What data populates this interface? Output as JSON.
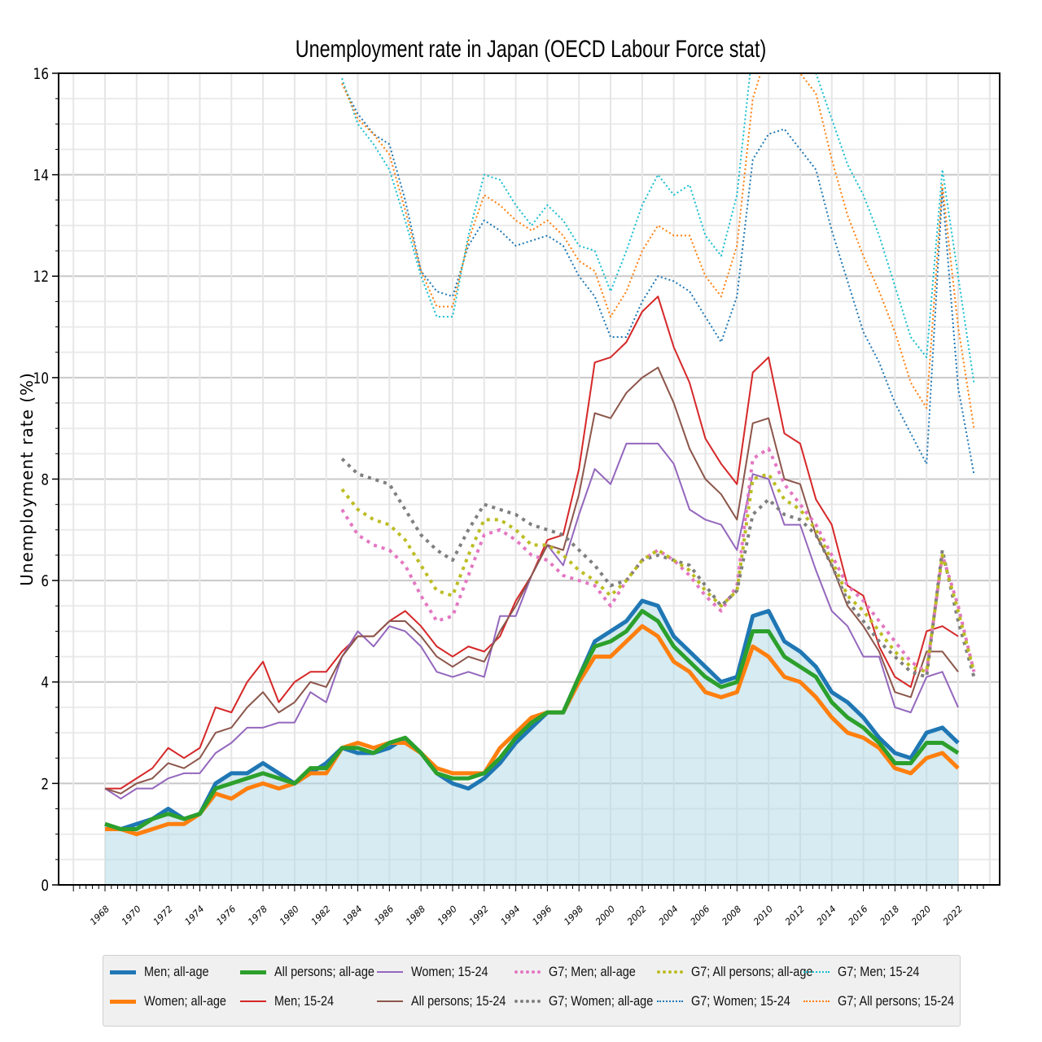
{
  "chart_data": {
    "type": "line",
    "title": "Unemployment rate in Japan (OECD Labour Force stat)",
    "xlabel": "",
    "ylabel": "Unemployment rate (%)",
    "ylim": [
      0,
      16
    ],
    "xlim": [
      1966,
      2024
    ],
    "yticks": [
      "0",
      "2",
      "4",
      "6",
      "8",
      "10",
      "12",
      "14",
      "16"
    ],
    "xticks": [
      "1968",
      "1970",
      "1972",
      "1974",
      "1976",
      "1978",
      "1980",
      "1982",
      "1984",
      "1986",
      "1988",
      "1990",
      "1992",
      "1994",
      "1996",
      "1998",
      "2000",
      "2002",
      "2004",
      "2006",
      "2008",
      "2010",
      "2012",
      "2014",
      "2016",
      "2018",
      "2020",
      "2022"
    ],
    "grid": true,
    "legend_position": "bottom",
    "area_fill": {
      "series": "Men; all-age",
      "color": "#add8e6"
    },
    "series": [
      {
        "name": "Men; all-age",
        "color": "#1f77b4",
        "style": "solid",
        "width": "thick",
        "start": 1968,
        "values": [
          1.2,
          1.1,
          1.2,
          1.3,
          1.5,
          1.3,
          1.4,
          2.0,
          2.2,
          2.2,
          2.4,
          2.2,
          2.0,
          2.2,
          2.4,
          2.7,
          2.6,
          2.6,
          2.7,
          2.9,
          2.6,
          2.2,
          2.0,
          1.9,
          2.1,
          2.4,
          2.8,
          3.1,
          3.4,
          3.4,
          4.1,
          4.8,
          5.0,
          5.2,
          5.6,
          5.5,
          4.9,
          4.6,
          4.3,
          4.0,
          4.1,
          5.3,
          5.4,
          4.8,
          4.6,
          4.3,
          3.8,
          3.6,
          3.3,
          2.9,
          2.6,
          2.5,
          3.0,
          3.1,
          2.8
        ]
      },
      {
        "name": "Women; all-age",
        "color": "#ff7f0e",
        "style": "solid",
        "width": "thick",
        "start": 1968,
        "values": [
          1.1,
          1.1,
          1.0,
          1.1,
          1.2,
          1.2,
          1.4,
          1.8,
          1.7,
          1.9,
          2.0,
          1.9,
          2.0,
          2.2,
          2.2,
          2.7,
          2.8,
          2.7,
          2.8,
          2.8,
          2.6,
          2.3,
          2.2,
          2.2,
          2.2,
          2.7,
          3.0,
          3.3,
          3.4,
          3.4,
          4.0,
          4.5,
          4.5,
          4.8,
          5.1,
          4.9,
          4.4,
          4.2,
          3.8,
          3.7,
          3.8,
          4.7,
          4.5,
          4.1,
          4.0,
          3.7,
          3.3,
          3.0,
          2.9,
          2.7,
          2.3,
          2.2,
          2.5,
          2.6,
          2.3
        ]
      },
      {
        "name": "All persons; all-age",
        "color": "#2ca02c",
        "style": "solid",
        "width": "thick",
        "start": 1968,
        "values": [
          1.2,
          1.1,
          1.1,
          1.3,
          1.4,
          1.3,
          1.4,
          1.9,
          2.0,
          2.1,
          2.2,
          2.1,
          2.0,
          2.3,
          2.3,
          2.7,
          2.7,
          2.6,
          2.8,
          2.9,
          2.6,
          2.2,
          2.1,
          2.1,
          2.2,
          2.5,
          2.9,
          3.2,
          3.4,
          3.4,
          4.1,
          4.7,
          4.8,
          5.0,
          5.4,
          5.2,
          4.7,
          4.4,
          4.1,
          3.9,
          4.0,
          5.0,
          5.0,
          4.5,
          4.3,
          4.1,
          3.6,
          3.3,
          3.1,
          2.8,
          2.4,
          2.4,
          2.8,
          2.8,
          2.6
        ]
      },
      {
        "name": "Men; 15-24",
        "color": "#d62728",
        "style": "solid",
        "width": "thin",
        "start": 1968,
        "values": [
          1.9,
          1.9,
          2.1,
          2.3,
          2.7,
          2.5,
          2.7,
          3.5,
          3.4,
          4.0,
          4.4,
          3.6,
          4.0,
          4.2,
          4.2,
          4.6,
          4.9,
          4.9,
          5.2,
          5.4,
          5.1,
          4.7,
          4.5,
          4.7,
          4.6,
          4.9,
          5.6,
          6.1,
          6.8,
          6.9,
          8.2,
          10.3,
          10.4,
          10.7,
          11.3,
          11.6,
          10.6,
          9.9,
          8.8,
          8.3,
          7.9,
          10.1,
          10.4,
          8.9,
          8.7,
          7.6,
          7.1,
          5.9,
          5.7,
          4.7,
          4.1,
          3.9,
          5.0,
          5.1,
          4.9
        ]
      },
      {
        "name": "Women; 15-24",
        "color": "#9467bd",
        "style": "solid",
        "width": "thin",
        "start": 1968,
        "values": [
          1.9,
          1.7,
          1.9,
          1.9,
          2.1,
          2.2,
          2.2,
          2.6,
          2.8,
          3.1,
          3.1,
          3.2,
          3.2,
          3.8,
          3.6,
          4.5,
          5.0,
          4.7,
          5.1,
          5.0,
          4.7,
          4.2,
          4.1,
          4.2,
          4.1,
          5.3,
          5.3,
          6.1,
          6.7,
          6.3,
          7.3,
          8.2,
          7.9,
          8.7,
          8.7,
          8.7,
          8.3,
          7.4,
          7.2,
          7.1,
          6.6,
          8.1,
          8.0,
          7.1,
          7.1,
          6.2,
          5.4,
          5.1,
          4.5,
          4.5,
          3.5,
          3.4,
          4.1,
          4.2,
          3.5
        ]
      },
      {
        "name": "All persons; 15-24",
        "color": "#8c564b",
        "style": "solid",
        "width": "thin",
        "start": 1968,
        "values": [
          1.9,
          1.8,
          2.0,
          2.1,
          2.4,
          2.3,
          2.5,
          3.0,
          3.1,
          3.5,
          3.8,
          3.4,
          3.6,
          4.0,
          3.9,
          4.5,
          4.9,
          4.9,
          5.2,
          5.2,
          4.9,
          4.5,
          4.3,
          4.5,
          4.4,
          5.0,
          5.5,
          6.1,
          6.7,
          6.6,
          7.7,
          9.3,
          9.2,
          9.7,
          10.0,
          10.2,
          9.5,
          8.6,
          8.0,
          7.7,
          7.2,
          9.1,
          9.2,
          8.0,
          7.9,
          6.9,
          6.3,
          5.5,
          5.1,
          4.6,
          3.8,
          3.7,
          4.6,
          4.6,
          4.2
        ]
      },
      {
        "name": "G7; Men; all-age",
        "color": "#e377c2",
        "style": "dotted",
        "width": "thick",
        "start": 1983,
        "values": [
          7.4,
          6.9,
          6.7,
          6.6,
          6.3,
          5.7,
          5.2,
          5.3,
          6.1,
          6.9,
          7.0,
          6.8,
          6.5,
          6.4,
          6.1,
          6.0,
          5.9,
          5.5,
          6.0,
          6.4,
          6.6,
          6.4,
          6.1,
          5.7,
          5.4,
          5.9,
          8.4,
          8.6,
          7.9,
          7.5,
          7.1,
          6.5,
          5.9,
          5.6,
          5.2,
          4.8,
          4.4,
          4.2,
          6.5,
          5.5,
          4.2
        ]
      },
      {
        "name": "G7; Women; all-age",
        "color": "#7f7f7f",
        "style": "dotted",
        "width": "thick",
        "start": 1983,
        "values": [
          8.4,
          8.1,
          8.0,
          7.9,
          7.4,
          6.9,
          6.6,
          6.4,
          7.0,
          7.5,
          7.4,
          7.3,
          7.1,
          7.0,
          6.9,
          6.6,
          6.3,
          5.9,
          6.0,
          6.4,
          6.5,
          6.4,
          6.3,
          5.9,
          5.5,
          5.8,
          7.3,
          7.6,
          7.3,
          7.2,
          6.9,
          6.3,
          5.6,
          5.2,
          4.8,
          4.5,
          4.2,
          4.1,
          6.6,
          5.2,
          4.1
        ]
      },
      {
        "name": "G7; All persons; all-age",
        "color": "#bcbd22",
        "style": "dotted",
        "width": "thick",
        "start": 1983,
        "values": [
          7.8,
          7.4,
          7.2,
          7.1,
          6.8,
          6.3,
          5.8,
          5.7,
          6.5,
          7.2,
          7.2,
          7.0,
          6.7,
          6.7,
          6.5,
          6.2,
          6.0,
          5.7,
          6.0,
          6.4,
          6.6,
          6.4,
          6.2,
          5.8,
          5.5,
          5.8,
          8.0,
          8.1,
          7.6,
          7.4,
          7.0,
          6.4,
          5.7,
          5.4,
          5.0,
          4.6,
          4.3,
          4.2,
          6.5,
          5.4,
          4.2
        ]
      },
      {
        "name": "G7; Women; 15-24",
        "color": "#1f77b4",
        "style": "dotted",
        "width": "thin",
        "start": 1983,
        "values": [
          15.8,
          15.2,
          14.8,
          14.6,
          13.5,
          12.1,
          11.7,
          11.6,
          12.6,
          13.1,
          12.9,
          12.6,
          12.7,
          12.8,
          12.6,
          12.0,
          11.6,
          10.8,
          10.8,
          11.5,
          12.0,
          11.9,
          11.7,
          11.2,
          10.7,
          11.6,
          14.3,
          14.8,
          14.9,
          14.5,
          14.1,
          12.9,
          11.9,
          10.9,
          10.3,
          9.5,
          8.9,
          8.3,
          13.7,
          9.8,
          8.1
        ]
      },
      {
        "name": "G7; Men; 15-24",
        "color": "#17becf",
        "style": "dotted",
        "width": "thin",
        "start": 1983,
        "values": [
          15.9,
          15.0,
          14.6,
          14.1,
          13.1,
          12.0,
          11.2,
          11.2,
          12.8,
          14.0,
          13.9,
          13.4,
          13.0,
          13.4,
          13.1,
          12.6,
          12.5,
          11.7,
          12.5,
          13.4,
          14.0,
          13.6,
          13.8,
          12.8,
          12.4,
          13.6,
          16.5,
          16.7,
          16.5,
          16.3,
          16.0,
          15.1,
          14.2,
          13.6,
          12.8,
          11.8,
          10.8,
          10.4,
          14.1,
          12.0,
          9.9
        ]
      },
      {
        "name": "G7; All persons; 15-24",
        "color": "#ff7f0e",
        "style": "dotted",
        "width": "thin",
        "start": 1983,
        "values": [
          15.8,
          15.1,
          14.8,
          14.4,
          13.3,
          12.1,
          11.4,
          11.4,
          12.7,
          13.6,
          13.4,
          13.1,
          12.9,
          13.1,
          12.8,
          12.3,
          12.1,
          11.2,
          11.7,
          12.5,
          13.0,
          12.8,
          12.8,
          12.0,
          11.6,
          12.6,
          15.5,
          16.5,
          16.3,
          16.0,
          15.6,
          14.3,
          13.2,
          12.4,
          11.7,
          10.9,
          9.9,
          9.4,
          13.8,
          11.0,
          9.0
        ]
      }
    ]
  }
}
